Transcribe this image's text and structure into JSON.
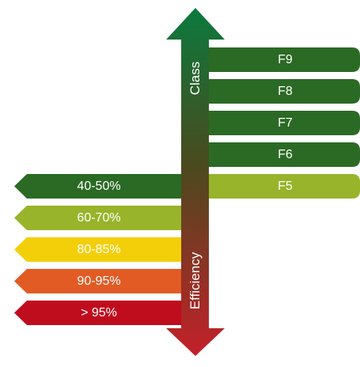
{
  "axis": {
    "top_label": "Class",
    "bottom_label": "Efficiency",
    "color_top": "#0b7a3e",
    "color_bottom": "#c4202a"
  },
  "filter_classes": [
    {
      "label": "F9",
      "color": "#2b6a24"
    },
    {
      "label": "F8",
      "color": "#2b6a24"
    },
    {
      "label": "F7",
      "color": "#2b6a24"
    },
    {
      "label": "F6",
      "color": "#2b6a24"
    },
    {
      "label": "F5",
      "color": "#97b42a"
    }
  ],
  "efficiency_levels": [
    {
      "label": "40-50%",
      "color": "#2b6a24"
    },
    {
      "label": "60-70%",
      "color": "#97b42a"
    },
    {
      "label": "80-85%",
      "color": "#f3cf0a"
    },
    {
      "label": "90-95%",
      "color": "#e25b25"
    },
    {
      "label": "> 95%",
      "color": "#bf0d1e"
    }
  ]
}
